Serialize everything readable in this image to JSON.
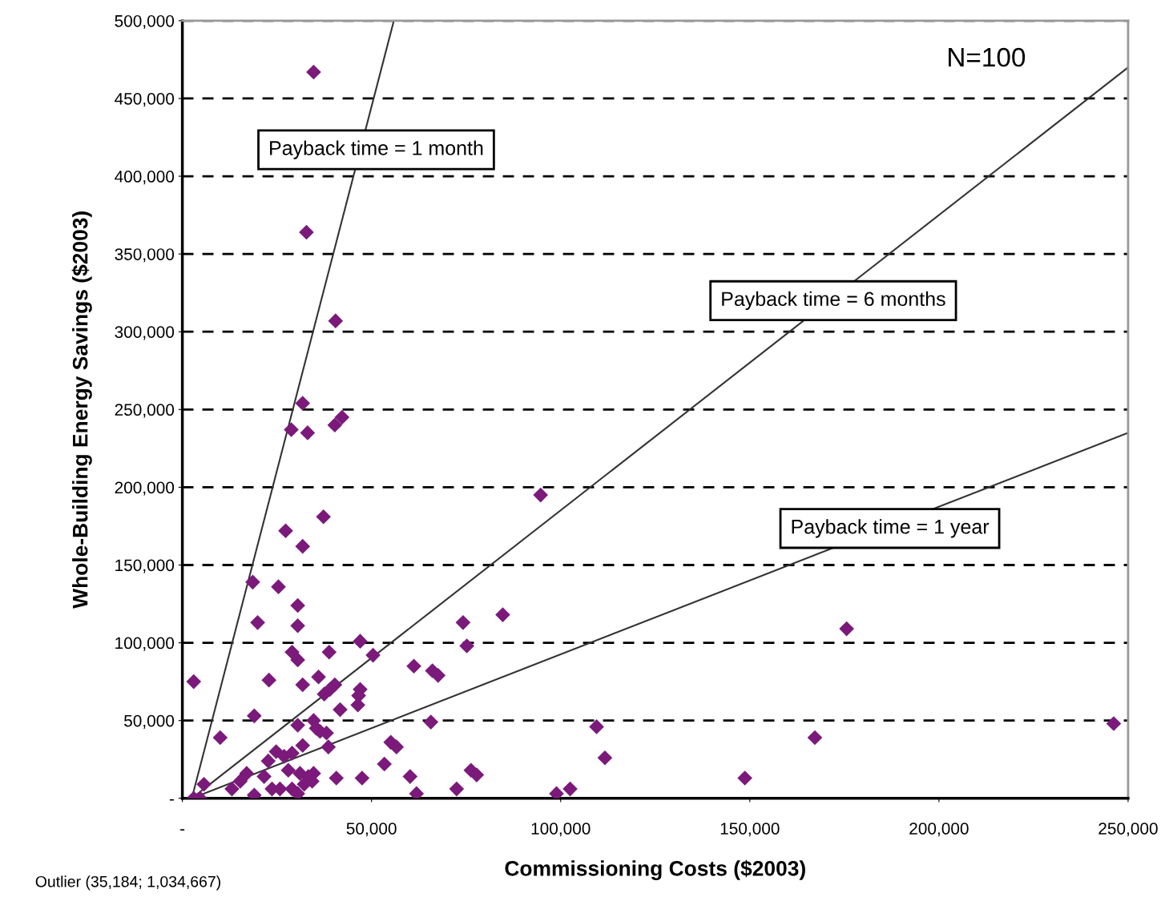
{
  "chart_data": {
    "type": "scatter",
    "xlabel": "Commissioning Costs ($2003)",
    "ylabel": "Whole-Building Energy Savings ($2003)",
    "xlim": [
      0,
      250000
    ],
    "ylim": [
      0,
      500000
    ],
    "xticks": [
      {
        "value": 0,
        "label": "-"
      },
      {
        "value": 50000,
        "label": "50,000"
      },
      {
        "value": 100000,
        "label": "100,000"
      },
      {
        "value": 150000,
        "label": "150,000"
      },
      {
        "value": 200000,
        "label": "200,000"
      },
      {
        "value": 250000,
        "label": "250,000"
      }
    ],
    "yticks": [
      {
        "value": 0,
        "label": "-"
      },
      {
        "value": 50000,
        "label": "50,000"
      },
      {
        "value": 100000,
        "label": "100,000"
      },
      {
        "value": 150000,
        "label": "150,000"
      },
      {
        "value": 200000,
        "label": "200,000"
      },
      {
        "value": 250000,
        "label": "250,000"
      },
      {
        "value": 300000,
        "label": "300,000"
      },
      {
        "value": 350000,
        "label": "350,000"
      },
      {
        "value": 400000,
        "label": "400,000"
      },
      {
        "value": 450000,
        "label": "450,000"
      },
      {
        "value": 500000,
        "label": "500,000"
      }
    ],
    "grid": "y",
    "legend": false,
    "marker": "diamond",
    "series": [
      {
        "color": "#7b1a7b",
        "x": [
          34700,
          32800,
          40500,
          31800,
          28800,
          33100,
          40300,
          42200,
          94700,
          27300,
          37300,
          31800,
          18600,
          25400,
          30500,
          19900,
          30500,
          74200,
          84700,
          75200,
          175600,
          3000,
          22900,
          47000,
          50400,
          29000,
          30500,
          38800,
          31800,
          36000,
          61200,
          66100,
          67600,
          47000,
          46600,
          46400,
          37500,
          39000,
          40300,
          19000,
          10000,
          41700,
          34700,
          36400,
          38100,
          35400,
          30500,
          65700,
          109500,
          167200,
          246200,
          111700,
          148700,
          55100,
          56600,
          53400,
          60200,
          61900,
          72500,
          76300,
          77800,
          98900,
          102500,
          47500,
          40700,
          38600,
          31800,
          24800,
          22700,
          17000,
          15300,
          5700,
          19000,
          3000,
          4700,
          31100,
          33300,
          34700,
          32200,
          29000,
          25800,
          30500,
          34300,
          28000,
          21600,
          23700,
          13100,
          26900,
          29000
        ],
        "values": [
          467000,
          364000,
          307000,
          254000,
          237000,
          235000,
          240000,
          245000,
          195000,
          172000,
          181000,
          162000,
          139000,
          136000,
          124000,
          113000,
          111000,
          113000,
          118000,
          98000,
          109000,
          75000,
          76000,
          101000,
          92000,
          94000,
          89000,
          94000,
          73000,
          78000,
          85000,
          82000,
          79000,
          70000,
          66000,
          60000,
          67000,
          70000,
          73000,
          53000,
          39000,
          57000,
          50000,
          43000,
          42000,
          45000,
          47000,
          49000,
          46000,
          39000,
          48000,
          26000,
          13000,
          36000,
          33000,
          22000,
          14000,
          3000,
          6000,
          18000,
          15000,
          3000,
          6000,
          13000,
          13000,
          33000,
          34000,
          30000,
          24000,
          16000,
          11000,
          9000,
          2000,
          0,
          0,
          16000,
          14000,
          16000,
          9000,
          6000,
          6000,
          3000,
          11000,
          18000,
          14000,
          6000,
          6000,
          27000,
          29000
        ]
      },
      {
        "type": "line",
        "color": "#333333",
        "marker": "none",
        "line_style": "solid",
        "x": [
          2500,
          55900
        ],
        "values": [
          0,
          500000
        ]
      },
      {
        "type": "line",
        "color": "#333333",
        "marker": "none",
        "line_style": "solid",
        "x": [
          2500,
          250000
        ],
        "values": [
          0,
          470000
        ]
      },
      {
        "type": "line",
        "color": "#333333",
        "marker": "none",
        "line_style": "solid",
        "x": [
          2500,
          250000
        ],
        "values": [
          0,
          235000
        ]
      }
    ],
    "annotations": [
      "Payback time = 1 month",
      "Payback time = 6 months",
      "Payback time = 1 year",
      "N=100",
      "Outlier (35,184; 1,034,667)"
    ]
  }
}
